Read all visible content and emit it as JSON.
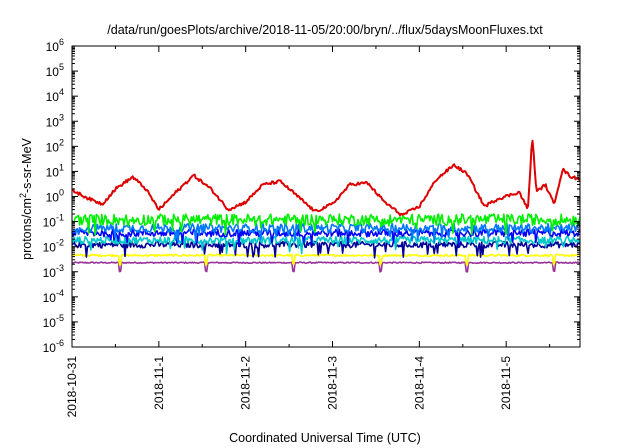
{
  "chart_data": {
    "type": "line",
    "title": "/data/run/goesPlots/archive/2018-11-05/20:00/bryn/../flux/5daysMoonFluxes.txt",
    "xlabel": "Coordinated Universal Time (UTC)",
    "ylabel_parts": [
      "protons/cm",
      "2",
      "-s-sr-MeV"
    ],
    "yscale": "log",
    "ylim_exp": [
      -6,
      6
    ],
    "y_ticks": [
      {
        "base": "10",
        "exp": "6"
      },
      {
        "base": "10",
        "exp": "5"
      },
      {
        "base": "10",
        "exp": "4"
      },
      {
        "base": "10",
        "exp": "3"
      },
      {
        "base": "10",
        "exp": "2"
      },
      {
        "base": "10",
        "exp": "1"
      },
      {
        "base": "10",
        "exp": "0"
      },
      {
        "base": "10",
        "exp": "-1"
      },
      {
        "base": "10",
        "exp": "-2"
      },
      {
        "base": "10",
        "exp": "-3"
      },
      {
        "base": "10",
        "exp": "-4"
      },
      {
        "base": "10",
        "exp": "-5"
      },
      {
        "base": "10",
        "exp": "-6"
      }
    ],
    "x_ticks": [
      "2018-10-31",
      "2018-11-1",
      "2018-11-2",
      "2018-11-3",
      "2018-11-4",
      "2018-11-5"
    ],
    "x_range_days": [
      0,
      5.85
    ],
    "grid": false,
    "series": [
      {
        "color": "#dd0000",
        "base": 1.0,
        "pattern": "diurnal",
        "points": [
          [
            0,
            1.8
          ],
          [
            0.2,
            0.8
          ],
          [
            0.35,
            0.5
          ],
          [
            0.5,
            2
          ],
          [
            0.7,
            6
          ],
          [
            0.85,
            2
          ],
          [
            1.0,
            0.3
          ],
          [
            1.2,
            1.5
          ],
          [
            1.4,
            7
          ],
          [
            1.6,
            2
          ],
          [
            1.8,
            0.3
          ],
          [
            2.0,
            0.6
          ],
          [
            2.2,
            3
          ],
          [
            2.4,
            4
          ],
          [
            2.6,
            1
          ],
          [
            2.8,
            0.25
          ],
          [
            3.0,
            0.5
          ],
          [
            3.2,
            3
          ],
          [
            3.4,
            3.5
          ],
          [
            3.6,
            0.6
          ],
          [
            3.8,
            0.18
          ],
          [
            4.0,
            0.4
          ],
          [
            4.2,
            5
          ],
          [
            4.4,
            18
          ],
          [
            4.55,
            8
          ],
          [
            4.75,
            0.4
          ],
          [
            4.9,
            0.8
          ],
          [
            5.15,
            1.5
          ],
          [
            5.25,
            0.3
          ],
          [
            5.3,
            250
          ],
          [
            5.35,
            1.5
          ],
          [
            5.45,
            3
          ],
          [
            5.55,
            0.5
          ],
          [
            5.65,
            12
          ],
          [
            5.75,
            6
          ],
          [
            5.85,
            5
          ]
        ]
      },
      {
        "color": "#00ee00",
        "base": 0.12,
        "noise": 0.45
      },
      {
        "color": "#0077ff",
        "base": 0.055,
        "noise": 0.35
      },
      {
        "color": "#0000ff",
        "base": 0.035,
        "noise": 0.3
      },
      {
        "color": "#00c8c8",
        "base": 0.018,
        "noise": 0.3
      },
      {
        "color": "#000099",
        "base": 0.012,
        "noise": 0.25
      },
      {
        "color": "#ffff00",
        "base": 0.0045,
        "noise": 0.08
      },
      {
        "color": "#993399",
        "base": 0.0023,
        "noise": 0.05
      }
    ]
  }
}
